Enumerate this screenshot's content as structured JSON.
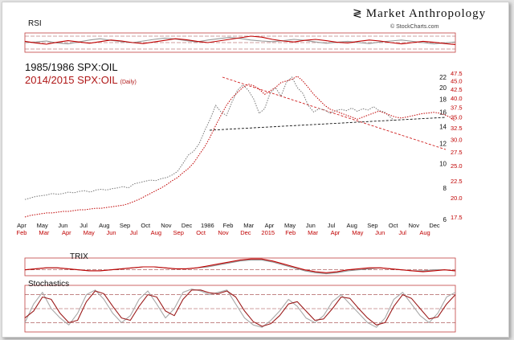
{
  "brand": {
    "name": "Market Anthropology",
    "credit": "© StockCharts.com",
    "symbol_icon": "double-helix-icon"
  },
  "titles": {
    "primary": "1985/1986 SPX:OIL",
    "secondary": "2014/2015 SPX:OIL",
    "secondary_note": "(Daily)"
  },
  "panels": {
    "rsi": "RSI",
    "trix": "TRIX",
    "stochastics": "Stochastics"
  },
  "colors": {
    "series_1985": "#555555",
    "series_2014": "#c00000",
    "trendline_red": "#d02020",
    "trendline_black": "#111111",
    "axis_red": "#c00000"
  },
  "chart_data": [
    {
      "panel": "RSI",
      "type": "line",
      "title": "RSI",
      "series": [
        {
          "values": [
            50,
            52,
            55,
            49,
            46,
            52,
            58,
            62,
            57,
            53,
            50,
            55,
            60,
            64,
            61,
            56,
            52,
            58,
            62,
            66,
            63,
            58,
            55,
            53,
            56,
            60,
            57,
            52,
            48,
            51,
            54,
            50,
            47,
            52,
            55,
            58,
            54,
            50,
            46,
            49,
            52
          ]
        },
        {
          "values": [
            54,
            49,
            45,
            51,
            56,
            52,
            48,
            53,
            58,
            55,
            50,
            47,
            52,
            57,
            62,
            59,
            54,
            50,
            55,
            60,
            65,
            70,
            67,
            60,
            55,
            52,
            57,
            60,
            56,
            51,
            49,
            54,
            58,
            55,
            50,
            46,
            50,
            54,
            51,
            47,
            44
          ]
        }
      ],
      "reference_lines": [
        30,
        50,
        70
      ]
    },
    {
      "panel": "Price",
      "type": "line",
      "title": "1985/1986 SPX:OIL",
      "x_top": [
        "Apr",
        "May",
        "Jun",
        "Jul",
        "Aug",
        "Sep",
        "Oct",
        "Nov",
        "Dec",
        "1986",
        "Feb",
        "Mar",
        "Apr",
        "May",
        "Jun",
        "Jul",
        "Aug",
        "Sep",
        "Oct",
        "Nov",
        "Dec"
      ],
      "x_bottom": [
        "Feb",
        "Mar",
        "Apr",
        "May",
        "Jun",
        "Jul",
        "Aug",
        "Sep",
        "Oct",
        "Nov",
        "Dec",
        "2015",
        "Feb",
        "Mar",
        "Apr",
        "May",
        "Jun",
        "Jul",
        "Aug"
      ],
      "y_left_ticks": [
        6,
        8,
        10,
        12,
        14,
        16,
        18,
        20,
        22
      ],
      "y_right_ticks": [
        17.5,
        20.0,
        22.5,
        25.0,
        27.5,
        30.0,
        32.5,
        35.0,
        37.5,
        40.0,
        42.5,
        45.0,
        47.5
      ],
      "series": [
        {
          "axis": "left",
          "x": [
            0,
            0.3,
            0.6,
            0.9,
            1.2,
            1.5,
            1.8,
            2.1,
            2.4,
            2.7,
            3,
            3.3,
            3.6,
            3.9,
            4.2,
            4.5,
            4.8,
            5.1,
            5.4,
            5.7,
            6,
            6.3,
            6.6,
            6.9,
            7.2,
            7.5,
            7.8,
            8.1,
            8.4,
            8.7,
            9,
            9.3,
            9.6,
            9.9,
            10.2,
            10.5,
            10.8,
            11.1,
            11.4,
            11.7,
            12,
            12.3,
            12.6,
            12.9,
            13.2,
            13.5,
            13.8,
            14.1,
            14.4,
            14.7,
            15,
            15.3,
            15.6,
            15.9,
            16.2,
            16.5,
            16.8,
            17.1,
            17.4,
            17.7,
            18,
            18.3,
            18.6,
            18.9,
            19.2,
            19.5,
            19.8,
            20.1,
            20.4
          ],
          "values": [
            7.2,
            7.3,
            7.4,
            7.45,
            7.5,
            7.6,
            7.55,
            7.6,
            7.7,
            7.65,
            7.75,
            7.8,
            7.7,
            7.85,
            7.9,
            7.85,
            7.95,
            8.0,
            8.1,
            8.0,
            8.3,
            8.4,
            8.5,
            8.6,
            8.55,
            8.7,
            8.8,
            9.0,
            9.3,
            10.0,
            10.8,
            11.2,
            12.0,
            13.5,
            15.0,
            17.0,
            16.0,
            15.5,
            17.5,
            19.5,
            20.5,
            19.5,
            18.0,
            15.8,
            16.5,
            19.0,
            20.0,
            18.5,
            21.0,
            22.0,
            20.0,
            19.0,
            17.0,
            16.0,
            16.5,
            16.3,
            15.8,
            16.2,
            16.4,
            16.2,
            16.6,
            16.1,
            16.5,
            16.3,
            16.8,
            16.2,
            16.0,
            15.3,
            14.7
          ]
        },
        {
          "axis": "right",
          "x": [
            0,
            0.3,
            0.6,
            0.9,
            1.2,
            1.5,
            1.8,
            2.1,
            2.4,
            2.7,
            3,
            3.3,
            3.6,
            3.9,
            4.2,
            4.5,
            4.8,
            5.1,
            5.4,
            5.7,
            6,
            6.3,
            6.6,
            6.9,
            7.2,
            7.5,
            7.8,
            8.1,
            8.4,
            8.7,
            9,
            9.3,
            9.6,
            9.9,
            10.2,
            10.5,
            10.8,
            11.1,
            11.4,
            11.7,
            12,
            12.3,
            12.6,
            12.9,
            13.2,
            13.5,
            13.8,
            14.1,
            14.4,
            14.7,
            15,
            15.3,
            15.6,
            15.9,
            16.2,
            16.5,
            16.8,
            17.1,
            17.4,
            17.7,
            18,
            18.3,
            18.6,
            18.9,
            19.2,
            19.5,
            19.8,
            20.1,
            20.4,
            20.7,
            21,
            21.3,
            21.6,
            21.9,
            22.2,
            22.5,
            22.8,
            23.1,
            23.4,
            23.7
          ],
          "values": [
            17.5,
            17.7,
            17.8,
            17.9,
            18.0,
            18.0,
            18.1,
            18.2,
            18.2,
            18.3,
            18.4,
            18.4,
            18.5,
            18.6,
            18.6,
            18.7,
            18.8,
            18.9,
            19.0,
            19.2,
            19.5,
            19.8,
            20.2,
            20.6,
            21.0,
            21.4,
            21.9,
            22.5,
            23.0,
            23.8,
            24.5,
            25.5,
            27.0,
            28.5,
            30.5,
            33.0,
            35.5,
            38.0,
            40.0,
            41.5,
            43.0,
            44.0,
            43.5,
            42.5,
            41.0,
            42.0,
            43.0,
            44.5,
            45.0,
            45.5,
            46.5,
            45.0,
            43.0,
            41.0,
            39.5,
            38.0,
            37.0,
            36.5,
            36.0,
            35.5,
            35.0,
            34.5,
            35.0,
            35.5,
            36.0,
            36.5,
            36.0,
            35.5,
            35.0,
            34.8,
            35.0,
            35.3,
            35.6,
            35.9,
            36.0,
            36.2,
            36.0,
            35.6,
            35.0,
            34.0
          ]
        }
      ]
    },
    {
      "panel": "TRIX",
      "type": "line",
      "title": "TRIX",
      "series": [
        {
          "values": [
            0,
            0.1,
            0.2,
            0.2,
            0.1,
            0.0,
            -0.1,
            -0.1,
            0.0,
            0.1,
            0.2,
            0.3,
            0.3,
            0.2,
            0.1,
            0.1,
            0.2,
            0.3,
            0.5,
            0.7,
            0.9,
            1.0,
            1.0,
            0.8,
            0.5,
            0.2,
            -0.1,
            -0.3,
            -0.4,
            -0.3,
            -0.1,
            0.0,
            0.1,
            0.2,
            0.1,
            0.0,
            -0.1,
            -0.1,
            0.0,
            0.0,
            -0.1
          ]
        },
        {
          "values": [
            0,
            0.1,
            0.2,
            0.2,
            0.1,
            0.0,
            -0.1,
            -0.1,
            0.0,
            0.1,
            0.2,
            0.3,
            0.3,
            0.2,
            0.1,
            0.1,
            0.2,
            0.4,
            0.6,
            0.8,
            1.0,
            1.1,
            1.1,
            0.9,
            0.6,
            0.3,
            0.0,
            -0.2,
            -0.3,
            -0.2,
            0.0,
            0.1,
            0.2,
            0.2,
            0.1,
            0.0,
            -0.1,
            -0.2,
            -0.1,
            0.0,
            -0.1
          ]
        }
      ],
      "reference_lines": [
        0
      ]
    },
    {
      "panel": "Stochastics",
      "type": "line",
      "title": "Stochastics",
      "series": [
        {
          "values": [
            20,
            60,
            85,
            50,
            30,
            15,
            40,
            80,
            90,
            70,
            40,
            20,
            35,
            70,
            88,
            60,
            30,
            50,
            85,
            92,
            88,
            80,
            85,
            90,
            60,
            30,
            15,
            10,
            25,
            45,
            70,
            55,
            30,
            20,
            35,
            65,
            80,
            60,
            40,
            20,
            10,
            30,
            70,
            85,
            60,
            35,
            20,
            40,
            75,
            85
          ]
        },
        {
          "values": [
            30,
            45,
            75,
            70,
            40,
            20,
            25,
            65,
            88,
            82,
            55,
            30,
            25,
            55,
            80,
            75,
            45,
            35,
            70,
            90,
            90,
            84,
            82,
            88,
            75,
            45,
            22,
            12,
            18,
            35,
            60,
            65,
            45,
            25,
            28,
            50,
            75,
            72,
            50,
            30,
            15,
            20,
            55,
            80,
            72,
            50,
            28,
            32,
            60,
            80
          ]
        }
      ],
      "reference_lines": [
        20,
        50,
        80
      ]
    }
  ]
}
